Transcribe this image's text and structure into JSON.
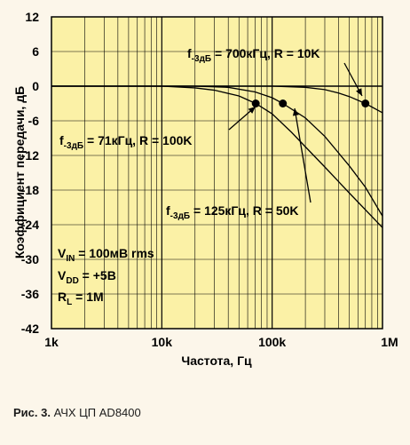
{
  "chart_data": {
    "type": "line",
    "xlabel": "Частота, Гц",
    "ylabel": "Коэффициент передачи, дБ",
    "xscale": "log",
    "xlim": [
      1000,
      1000000
    ],
    "ylim": [
      -42,
      12
    ],
    "grid": true,
    "x_ticks": [
      {
        "value": 1000,
        "label": "1k"
      },
      {
        "value": 10000,
        "label": "10k"
      },
      {
        "value": 100000,
        "label": "100k"
      },
      {
        "value": 1000000,
        "label": "1M"
      }
    ],
    "y_ticks": [
      12,
      6,
      0,
      -6,
      -12,
      -18,
      -24,
      -30,
      -36,
      -42
    ],
    "series": [
      {
        "x": [
          1000,
          10000,
          20000,
          30000,
          50000,
          71000,
          100000,
          150000,
          200000,
          300000,
          500000,
          1000000
        ],
        "y": [
          0,
          0,
          -0.3,
          -0.7,
          -1.7,
          -3,
          -4.8,
          -8,
          -10.5,
          -14,
          -18.5,
          -24.5
        ]
      },
      {
        "x": [
          1000,
          10000,
          20000,
          40000,
          70000,
          100000,
          125000,
          200000,
          300000,
          500000,
          700000,
          1000000
        ],
        "y": [
          0,
          0,
          0,
          -0.2,
          -1,
          -2,
          -3,
          -5.5,
          -8.7,
          -13.8,
          -17.5,
          -22.5
        ]
      },
      {
        "x": [
          1000,
          10000,
          100000,
          200000,
          300000,
          400000,
          500000,
          700000,
          1000000
        ],
        "y": [
          0,
          0,
          0,
          -0.2,
          -0.6,
          -1.2,
          -1.8,
          -3,
          -4.6
        ]
      }
    ],
    "markers": [
      {
        "x": 71000,
        "y": -3
      },
      {
        "x": 125000,
        "y": -3
      },
      {
        "x": 700000,
        "y": -3
      }
    ],
    "annotations": [
      {
        "main": "f",
        "sub": "-3дБ",
        "rest": " = 700кГц, R = 10K",
        "target": 2
      },
      {
        "main": "f",
        "sub": "-3дБ",
        "rest": " = 71кГц, R = 100K",
        "target": 0
      },
      {
        "main": "f",
        "sub": "-3дБ",
        "rest": " = 125кГц, R = 50K",
        "target": 1
      }
    ],
    "conditions": [
      {
        "main": "V",
        "sub": "IN",
        "rest": " = 100мВ  rms"
      },
      {
        "main": "V",
        "sub": "DD",
        "rest": " = +5В"
      },
      {
        "main": "R",
        "sub": "L",
        "rest": " = 1M"
      }
    ]
  },
  "caption": {
    "label": "Рис. 3.",
    "text": " АЧХ ЦП AD8400"
  }
}
